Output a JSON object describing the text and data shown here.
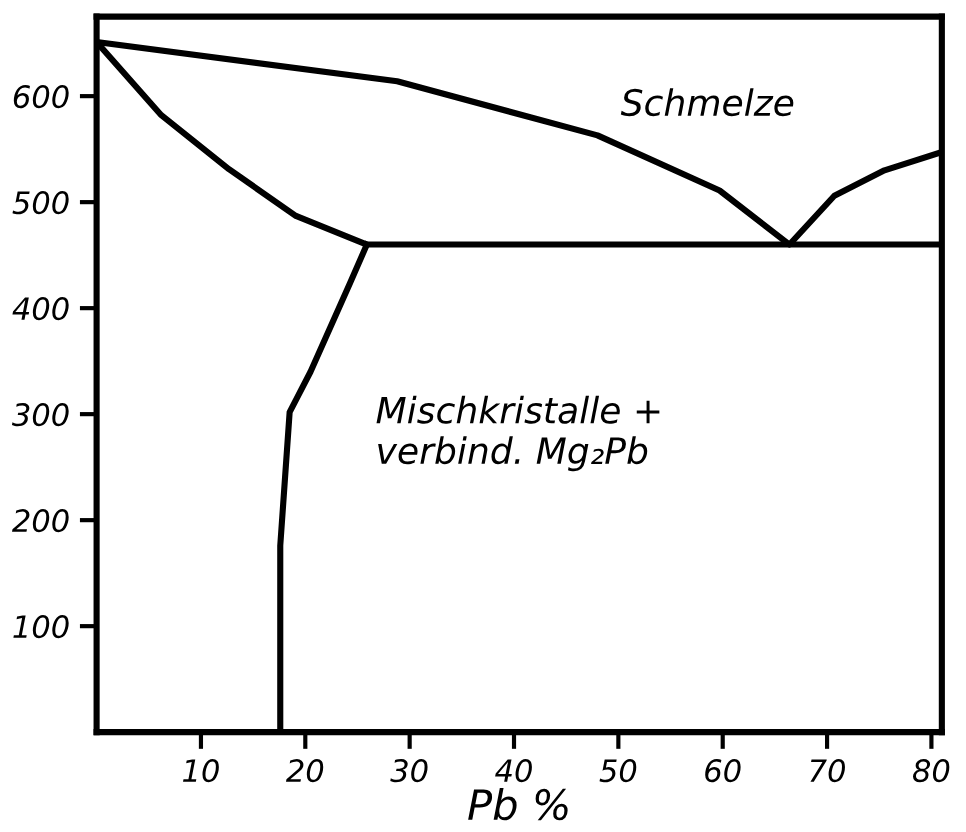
{
  "chart_data": {
    "type": "line",
    "xlabel": "Pb %",
    "series": [
      {
        "color": "#000000",
        "x": [
          0,
          28.8,
          48,
          59.7,
          66.4,
          70.7,
          75.5,
          80.9
        ],
        "values": [
          651,
          614,
          563,
          511,
          460,
          506,
          530,
          547
        ]
      },
      {
        "color": "#000000",
        "x": [
          0,
          6.2,
          12.7,
          19.1,
          25.9,
          81
        ],
        "values": [
          651,
          582,
          531,
          487,
          460,
          460
        ]
      },
      {
        "color": "#000000",
        "x": [
          25.9,
          24.3,
          20.5,
          18.5,
          17.6,
          17.6
        ],
        "values": [
          460,
          424,
          340,
          302,
          176,
          0
        ]
      }
    ],
    "xlim": [
      0,
      81
    ],
    "ylim": [
      0,
      675
    ],
    "xticks": [
      10,
      20,
      30,
      40,
      50,
      60,
      70,
      80
    ],
    "yticks": [
      100,
      200,
      300,
      400,
      500,
      600
    ],
    "annotations": [
      "Schmelze",
      "Mischkristalle +\nverbind. Mg₂Pb"
    ],
    "grid": false,
    "marker": "none",
    "line_style": "solid"
  }
}
